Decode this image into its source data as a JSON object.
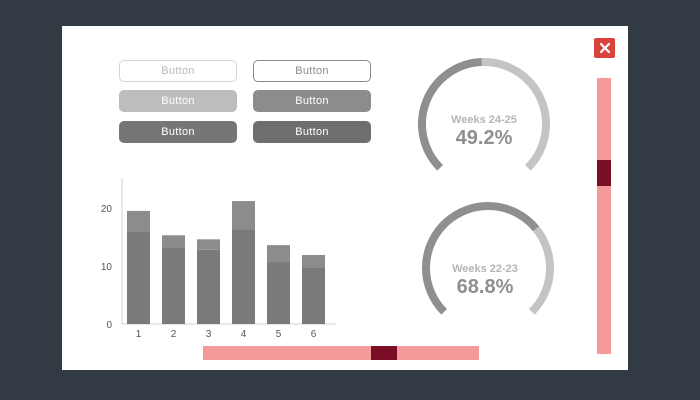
{
  "buttons": [
    {
      "label": "Button",
      "style": "ghost-light"
    },
    {
      "label": "Button",
      "style": "ghost-dark"
    },
    {
      "label": "Button",
      "style": "light"
    },
    {
      "label": "Button",
      "style": "mid"
    },
    {
      "label": "Button",
      "style": "dark"
    },
    {
      "label": "Button",
      "style": "darker"
    }
  ],
  "gauges": [
    {
      "label": "Weeks 24-25",
      "value_text": "49.2%",
      "value": 0.492
    },
    {
      "label": "Weeks 22-23",
      "value_text": "68.8%",
      "value": 0.688
    }
  ],
  "colors": {
    "background": "#323a44",
    "panel": "#ffffff",
    "close": "#d9433b",
    "scroll_track": "#f59a9a",
    "scroll_thumb": "#7a0e26",
    "bar_base": "#7a7a7a",
    "bar_top": "#8c8c8c",
    "gauge_fill": "#8f8f8f",
    "gauge_rest": "#c4c4c4"
  },
  "close_button": {
    "icon": "close-icon"
  },
  "scrollbars": {
    "vertical": {
      "position": 0.35
    },
    "horizontal": {
      "position": 0.67
    }
  },
  "chart_data": {
    "type": "bar",
    "stacked": true,
    "categories": [
      "1",
      "2",
      "3",
      "4",
      "5",
      "6"
    ],
    "series": [
      {
        "values": [
          16,
          13.2,
          12.8,
          16.3,
          10.8,
          9.8
        ]
      },
      {
        "values": [
          3.5,
          2.1,
          1.8,
          4.9,
          2.8,
          2.1
        ]
      }
    ],
    "yticks": [
      0,
      10,
      20
    ],
    "ylim": [
      0,
      25
    ],
    "grid": false
  }
}
